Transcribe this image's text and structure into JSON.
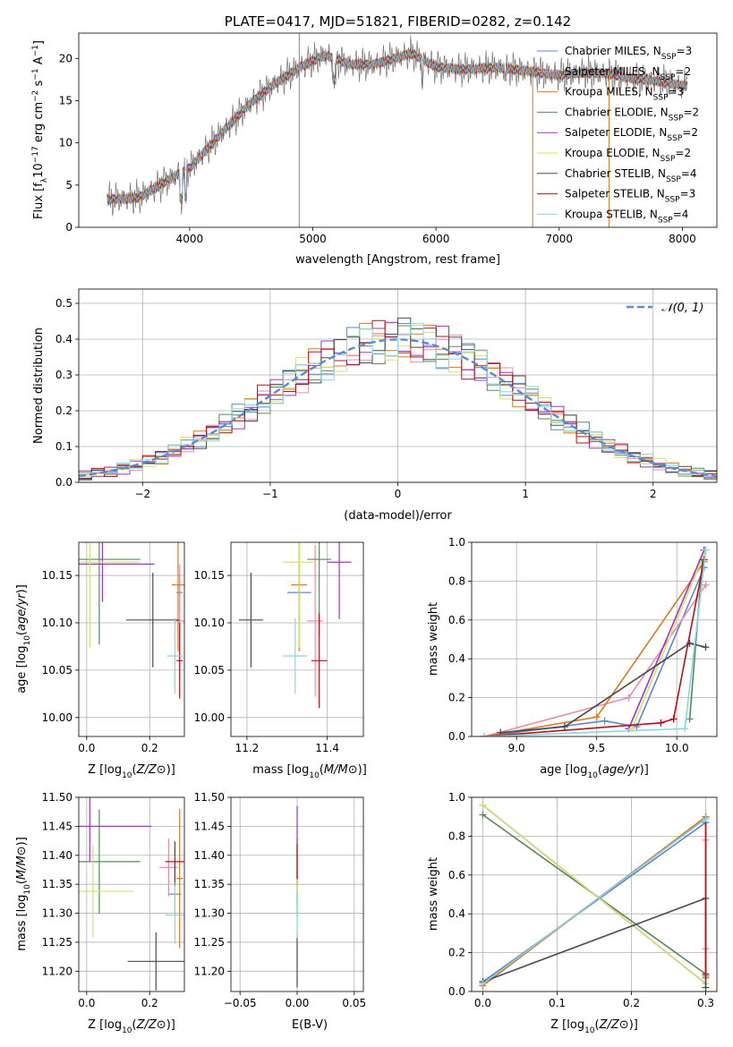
{
  "figure_title": "PLATE=0417, MJD=51821, FIBERID=0282, z=0.142",
  "series_names": [
    {
      "base": "Chabrier MILES, N",
      "sub": "SSP",
      "tail": "=3",
      "color": "#5a86d4"
    },
    {
      "base": "Salpeter MILES, N",
      "sub": "SSP",
      "tail": "=2",
      "color": "#e98ea6"
    },
    {
      "base": "Kroupa MILES, N",
      "sub": "SSP",
      "tail": "=3",
      "color": "#d87a1e"
    },
    {
      "base": "Chabrier ELODIE, N",
      "sub": "SSP",
      "tail": "=2",
      "color": "#58875a"
    },
    {
      "base": "Salpeter ELODIE, N",
      "sub": "SSP",
      "tail": "=2",
      "color": "#a033c8"
    },
    {
      "base": "Kroupa ELODIE, N",
      "sub": "SSP",
      "tail": "=2",
      "color": "#cfe36a"
    },
    {
      "base": "Chabrier STELIB, N",
      "sub": "SSP",
      "tail": "=4",
      "color": "#4a4a4a"
    },
    {
      "base": "Salpeter STELIB, N",
      "sub": "SSP",
      "tail": "=3",
      "color": "#b0121c"
    },
    {
      "base": "Kroupa STELIB, N",
      "sub": "SSP",
      "tail": "=4",
      "color": "#84d8e0"
    }
  ],
  "chart_data": [
    {
      "id": "spectrum",
      "type": "line",
      "xlabel": "wavelength [Angstrom, rest frame]",
      "ylabel": "Flux [f",
      "xlim": [
        3100,
        8280
      ],
      "ylim": [
        0,
        23
      ],
      "xticks": [
        4000,
        5000,
        6000,
        7000,
        8000
      ],
      "yticks": [
        0,
        5,
        10,
        15,
        20
      ],
      "x": [
        3330,
        3500,
        3600,
        3800,
        4000,
        4200,
        4300,
        4500,
        4700,
        4900,
        5100,
        5300,
        5500,
        5800,
        6000,
        6200,
        6500,
        6800,
        7000,
        7200,
        7400,
        7600,
        7800,
        8000,
        8040
      ],
      "y": [
        3.3,
        3.4,
        3.6,
        5.4,
        7.0,
        10.2,
        11.8,
        14.8,
        17.1,
        19.0,
        20.4,
        19.3,
        19.3,
        20.6,
        19.0,
        18.7,
        18.9,
        18.4,
        18.0,
        18.3,
        18.2,
        17.6,
        17.3,
        16.8,
        16.8
      ]
    },
    {
      "id": "residuals",
      "type": "bar",
      "xlabel": "(data-model)/error",
      "ylabel": "Normed distribution",
      "xlim": [
        -2.5,
        2.5
      ],
      "ylim": [
        0,
        0.54
      ],
      "xticks": [
        -2,
        -1,
        0,
        1,
        2
      ],
      "yticks": [
        0.0,
        0.1,
        0.2,
        0.3,
        0.4,
        0.5
      ],
      "legend": "𝒩(0, 1)",
      "gaussian": {
        "mu": 0,
        "sigma": 1
      },
      "bin_width": 0.1
    },
    {
      "id": "age_vs_Z",
      "type": "scatter",
      "xlabel": "Z [log",
      "ylabel": "age  [log",
      "xlim": [
        -0.025,
        0.31
      ],
      "ylim": [
        9.98,
        10.185
      ],
      "xticks": [
        0.0,
        0.2
      ],
      "yticks": [
        10.0,
        10.05,
        10.1,
        10.15
      ],
      "points": [
        {
          "x": 0.295,
          "y": 10.132,
          "ex": 0.01,
          "ey": 0.02
        },
        {
          "x": 0.295,
          "y": 10.102,
          "ex": 0.015,
          "ey": 0.06
        },
        {
          "x": 0.29,
          "y": 10.14,
          "ex": 0.02,
          "ey": 0.07
        },
        {
          "x": 0.04,
          "y": 10.167,
          "ex": 0.13,
          "ey": 0.09
        },
        {
          "x": 0.05,
          "y": 10.162,
          "ex": 0.165,
          "ey": 0.04
        },
        {
          "x": 0.01,
          "y": 10.164,
          "ex": 0.16,
          "ey": 0.09
        },
        {
          "x": 0.21,
          "y": 10.103,
          "ex": 0.085,
          "ey": 0.05
        },
        {
          "x": 0.295,
          "y": 10.06,
          "ex": 0.01,
          "ey": 0.04
        },
        {
          "x": 0.28,
          "y": 10.065,
          "ex": 0.025,
          "ey": 0.04
        }
      ]
    },
    {
      "id": "age_vs_mass",
      "type": "scatter",
      "xlabel": "mass [log",
      "ylabel": "",
      "xlim": [
        11.16,
        11.49
      ],
      "ylim": [
        9.98,
        10.185
      ],
      "xticks": [
        11.2,
        11.4
      ],
      "yticks": [
        10.0,
        10.05,
        10.1,
        10.15
      ],
      "points": [
        {
          "x": 11.33,
          "y": 10.132,
          "ex": 0.03,
          "ey": 0.03
        },
        {
          "x": 11.37,
          "y": 10.102,
          "ex": 0.02,
          "ey": 0.08
        },
        {
          "x": 11.33,
          "y": 10.14,
          "ex": 0.02,
          "ey": 0.07
        },
        {
          "x": 11.38,
          "y": 10.167,
          "ex": 0.03,
          "ey": 0.08
        },
        {
          "x": 11.43,
          "y": 10.164,
          "ex": 0.03,
          "ey": 0.06
        },
        {
          "x": 11.33,
          "y": 10.164,
          "ex": 0.04,
          "ey": 0.09
        },
        {
          "x": 11.21,
          "y": 10.103,
          "ex": 0.03,
          "ey": 0.05
        },
        {
          "x": 11.38,
          "y": 10.06,
          "ex": 0.02,
          "ey": 0.05
        },
        {
          "x": 11.32,
          "y": 10.065,
          "ex": 0.03,
          "ey": 0.04
        }
      ]
    },
    {
      "id": "weight_vs_age",
      "type": "line",
      "xlabel": "age  [log",
      "ylabel": "mass weight",
      "xlim": [
        8.72,
        10.25
      ],
      "ylim": [
        0,
        1
      ],
      "xticks": [
        9.0,
        9.5,
        10.0
      ],
      "yticks": [
        0.0,
        0.2,
        0.4,
        0.6,
        0.8,
        1.0
      ],
      "series": [
        {
          "x": [
            8.8,
            9.55,
            9.75,
            10.17
          ],
          "y": [
            0.0,
            0.08,
            0.05,
            0.87
          ]
        },
        {
          "x": [
            8.8,
            9.7,
            10.18
          ],
          "y": [
            0.0,
            0.2,
            0.78
          ]
        },
        {
          "x": [
            8.8,
            9.5,
            10.17
          ],
          "y": [
            0.0,
            0.1,
            0.9
          ]
        },
        {
          "x": [
            10.08,
            10.16
          ],
          "y": [
            0.09,
            0.91
          ]
        },
        {
          "x": [
            9.7,
            10.17
          ],
          "y": [
            0.04,
            0.96
          ]
        },
        {
          "x": [
            9.72,
            10.18
          ],
          "y": [
            0.04,
            0.96
          ]
        },
        {
          "x": [
            8.9,
            9.3,
            10.08,
            10.18
          ],
          "y": [
            0.02,
            0.05,
            0.48,
            0.46
          ]
        },
        {
          "x": [
            8.8,
            9.9,
            9.98,
            10.17
          ],
          "y": [
            0.0,
            0.07,
            0.09,
            0.91
          ]
        },
        {
          "x": [
            8.8,
            10.05,
            10.18
          ],
          "y": [
            0.0,
            0.04,
            0.96
          ]
        }
      ]
    },
    {
      "id": "mass_vs_Z",
      "type": "scatter",
      "xlabel": "Z [log",
      "ylabel": "mass [log",
      "xlim": [
        -0.025,
        0.31
      ],
      "ylim": [
        11.165,
        11.5
      ],
      "xticks": [
        0.0,
        0.2
      ],
      "yticks": [
        11.2,
        11.25,
        11.3,
        11.35,
        11.4,
        11.45,
        11.5
      ],
      "points": [
        {
          "x": 0.28,
          "y": 11.333,
          "ex": 0.02,
          "ey": 0.03
        },
        {
          "x": 0.26,
          "y": 11.379,
          "ex": 0.03,
          "ey": 0.05
        },
        {
          "x": 0.295,
          "y": 11.36,
          "ex": 0.01,
          "ey": 0.12
        },
        {
          "x": 0.04,
          "y": 11.389,
          "ex": 0.13,
          "ey": 0.09
        },
        {
          "x": 0.01,
          "y": 11.45,
          "ex": 0.195,
          "ey": 0.06
        },
        {
          "x": 0.02,
          "y": 11.338,
          "ex": 0.13,
          "ey": 0.08
        },
        {
          "x": 0.22,
          "y": 11.217,
          "ex": 0.09,
          "ey": 0.05
        },
        {
          "x": 0.28,
          "y": 11.389,
          "ex": 0.03,
          "ey": 0.035
        },
        {
          "x": 0.28,
          "y": 11.297,
          "ex": 0.03,
          "ey": 0.05
        }
      ]
    },
    {
      "id": "mass_vs_ebv",
      "type": "scatter",
      "xlabel": "E(B-V)",
      "ylabel": "",
      "xlim": [
        -0.058,
        0.058
      ],
      "ylim": [
        11.165,
        11.5
      ],
      "xticks": [
        -0.05,
        0.0,
        0.05
      ],
      "yticks": [
        11.2,
        11.25,
        11.3,
        11.35,
        11.4,
        11.45,
        11.5
      ],
      "points": [
        {
          "x": 0,
          "y": 11.333,
          "ex": 0,
          "ey": 0.04
        },
        {
          "x": 0,
          "y": 11.379,
          "ex": 0,
          "ey": 0.04
        },
        {
          "x": 0,
          "y": 11.36,
          "ex": 0,
          "ey": 0.05
        },
        {
          "x": 0,
          "y": 11.389,
          "ex": 0,
          "ey": 0.04
        },
        {
          "x": 0,
          "y": 11.45,
          "ex": 0,
          "ey": 0.035
        },
        {
          "x": 0,
          "y": 11.338,
          "ex": 0,
          "ey": 0.04
        },
        {
          "x": 0,
          "y": 11.217,
          "ex": 0,
          "ey": 0.045
        },
        {
          "x": 0,
          "y": 11.389,
          "ex": 0,
          "ey": 0.03
        },
        {
          "x": 0,
          "y": 11.297,
          "ex": 0,
          "ey": 0.04
        }
      ]
    },
    {
      "id": "weight_vs_Z",
      "type": "line",
      "xlabel": "Z [log",
      "ylabel": "mass weight",
      "xlim": [
        -0.015,
        0.315
      ],
      "ylim": [
        0,
        1
      ],
      "xticks": [
        0.0,
        0.1,
        0.2,
        0.3
      ],
      "yticks": [
        0.0,
        0.2,
        0.4,
        0.6,
        0.8,
        1.0
      ],
      "series": [
        {
          "x": [
            0.0,
            0.3,
            0.3
          ],
          "y": [
            0.05,
            0.87,
            0.08
          ]
        },
        {
          "x": [
            0.3,
            0.3
          ],
          "y": [
            0.22,
            0.78
          ]
        },
        {
          "x": [
            0.0,
            0.3,
            0.3
          ],
          "y": [
            0.03,
            0.9,
            0.07
          ]
        },
        {
          "x": [
            0.0,
            0.3
          ],
          "y": [
            0.91,
            0.09
          ]
        },
        {
          "x": [
            0.0,
            0.3
          ],
          "y": [
            0.96,
            0.04
          ]
        },
        {
          "x": [
            0.0,
            0.3
          ],
          "y": [
            0.96,
            0.04
          ]
        },
        {
          "x": [
            0.0,
            0.3,
            0.3
          ],
          "y": [
            0.05,
            0.48,
            0.02
          ]
        },
        {
          "x": [
            0.0,
            0.3,
            0.3
          ],
          "y": [
            0.04,
            0.89,
            0.09
          ]
        },
        {
          "x": [
            0.0,
            0.3
          ],
          "y": [
            0.04,
            0.89
          ]
        }
      ]
    }
  ]
}
